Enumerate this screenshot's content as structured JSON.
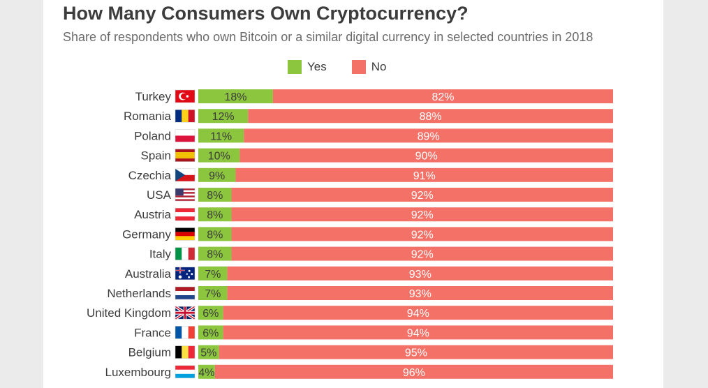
{
  "title": "How Many Consumers Own Cryptocurrency?",
  "subtitle": "Share of respondents who own Bitcoin or a similar digital currency in selected countries in 2018",
  "colors": {
    "yes": "#8cc63f",
    "no": "#f37167",
    "yes_label": "#3c3c3c",
    "no_label": "#ffffff",
    "category_label": "#3c3c3c"
  },
  "chart_data": {
    "type": "bar",
    "orientation": "horizontal",
    "stacked": true,
    "title": "How Many Consumers Own Cryptocurrency?",
    "subtitle": "Share of respondents who own Bitcoin or a similar digital currency in selected countries in 2018",
    "unit": "%",
    "xlim": [
      0,
      100
    ],
    "grid": false,
    "legend_position": "top",
    "categories": [
      "Turkey",
      "Romania",
      "Poland",
      "Spain",
      "Czechia",
      "USA",
      "Austria",
      "Germany",
      "Italy",
      "Australia",
      "Netherlands",
      "United Kingdom",
      "France",
      "Belgium",
      "Luxembourg"
    ],
    "flags": [
      "turkey-flag-icon",
      "romania-flag-icon",
      "poland-flag-icon",
      "spain-flag-icon",
      "czechia-flag-icon",
      "usa-flag-icon",
      "austria-flag-icon",
      "germany-flag-icon",
      "italy-flag-icon",
      "australia-flag-icon",
      "netherlands-flag-icon",
      "uk-flag-icon",
      "france-flag-icon",
      "belgium-flag-icon",
      "luxembourg-flag-icon"
    ],
    "series": [
      {
        "name": "Yes",
        "color": "#8cc63f",
        "values": [
          18,
          12,
          11,
          10,
          9,
          8,
          8,
          8,
          8,
          7,
          7,
          6,
          6,
          5,
          4
        ],
        "labels": [
          "18%",
          "12%",
          "11%",
          "10%",
          "9%",
          "8%",
          "8%",
          "8%",
          "8%",
          "7%",
          "7%",
          "6%",
          "6%",
          "5%",
          "4%"
        ]
      },
      {
        "name": "No",
        "color": "#f37167",
        "values": [
          82,
          88,
          89,
          90,
          91,
          92,
          92,
          92,
          92,
          93,
          93,
          94,
          94,
          95,
          96
        ],
        "labels": [
          "82%",
          "88%",
          "89%",
          "90%",
          "91%",
          "92%",
          "92%",
          "92%",
          "92%",
          "93%",
          "93%",
          "94%",
          "94%",
          "95%",
          "96%"
        ]
      }
    ]
  }
}
